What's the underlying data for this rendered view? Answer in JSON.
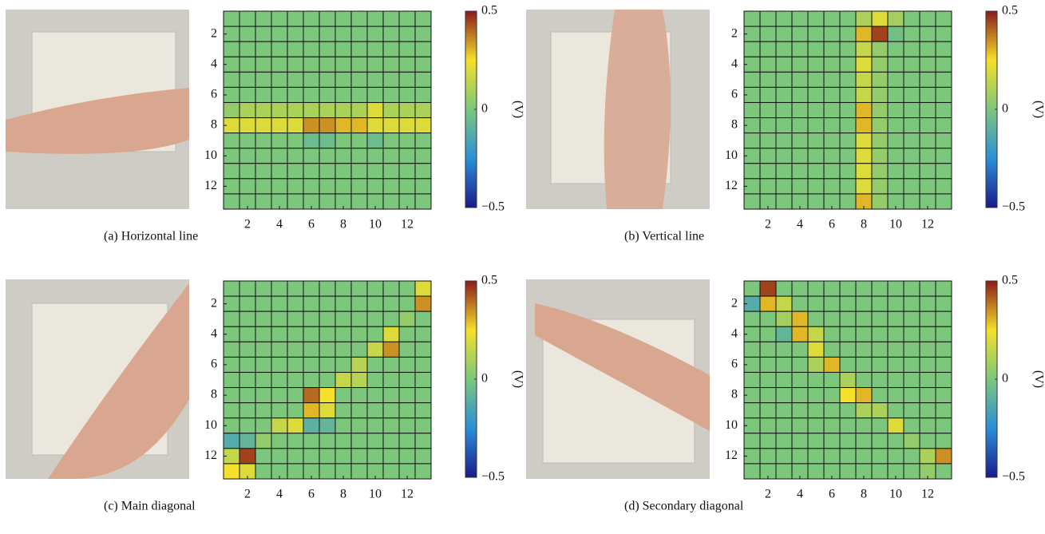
{
  "chart_data": [
    {
      "type": "heatmap",
      "caption": "(a)  Horizontal line",
      "xlim": [
        0.5,
        13.5
      ],
      "ylim": [
        0.5,
        13.5
      ],
      "xticks": [
        2,
        4,
        6,
        8,
        10,
        12
      ],
      "yticks": [
        2,
        4,
        6,
        8,
        10,
        12
      ],
      "zlim": [
        -0.5,
        0.5
      ],
      "colorbar_ticks": [
        0.5,
        0,
        {
          "value": -0.5,
          "label": "−0.5"
        }
      ],
      "colorbar_label": "(V)",
      "z": [
        [
          0,
          0,
          0,
          0,
          0,
          0,
          0,
          0,
          0,
          0,
          0,
          0,
          0
        ],
        [
          0,
          0,
          0,
          0,
          0,
          0,
          0,
          0,
          0,
          0,
          0,
          0,
          0
        ],
        [
          0,
          0,
          0,
          0,
          0,
          0,
          0,
          0,
          0,
          0,
          0,
          0,
          0
        ],
        [
          0,
          0,
          0,
          0,
          0,
          0,
          0,
          0,
          0,
          0,
          0,
          0,
          0
        ],
        [
          0,
          0,
          0,
          0,
          0,
          0,
          0,
          0,
          0,
          0,
          0,
          0,
          0
        ],
        [
          0,
          0,
          0,
          0,
          0,
          0,
          0,
          0,
          0,
          0,
          0,
          0,
          0
        ],
        [
          0.05,
          0.1,
          0.1,
          0.1,
          0.1,
          0.1,
          0.1,
          0.1,
          0.1,
          0.2,
          0.1,
          0.1,
          0.1
        ],
        [
          0.2,
          0.2,
          0.2,
          0.2,
          0.2,
          0.35,
          0.35,
          0.3,
          0.3,
          0.2,
          0.2,
          0.2,
          0.2
        ],
        [
          0,
          0,
          0,
          0,
          0,
          -0.05,
          -0.05,
          0,
          0,
          -0.05,
          0,
          0,
          0
        ],
        [
          0,
          0,
          0,
          0,
          0,
          0,
          0,
          0,
          0,
          0,
          0,
          0,
          0
        ],
        [
          0,
          0,
          0,
          0,
          0,
          0,
          0,
          0,
          0,
          0,
          0,
          0,
          0
        ],
        [
          0,
          0,
          0,
          0,
          0,
          0,
          0,
          0,
          0,
          0,
          0,
          0,
          0
        ],
        [
          0,
          0,
          0,
          0,
          0,
          0,
          0,
          0,
          0,
          0,
          0,
          0,
          0
        ]
      ]
    },
    {
      "type": "heatmap",
      "caption": "(b)  Vertical line",
      "xlim": [
        0.5,
        13.5
      ],
      "ylim": [
        0.5,
        13.5
      ],
      "xticks": [
        2,
        4,
        6,
        8,
        10,
        12
      ],
      "yticks": [
        2,
        4,
        6,
        8,
        10,
        12
      ],
      "zlim": [
        -0.5,
        0.5
      ],
      "colorbar_ticks": [
        0.5,
        0,
        {
          "value": -0.5,
          "label": "−0.5"
        }
      ],
      "colorbar_label": "(V)",
      "z": [
        [
          0,
          0,
          0,
          0,
          0,
          0,
          0,
          0.1,
          0.2,
          0.08,
          0,
          0,
          0
        ],
        [
          0,
          0,
          0,
          0,
          0,
          0,
          0,
          0.3,
          0.45,
          -0.03,
          0,
          0,
          0
        ],
        [
          0,
          0,
          0,
          0,
          0,
          0,
          0,
          0.15,
          0.05,
          0,
          0,
          0,
          0
        ],
        [
          0,
          0,
          0,
          0,
          0,
          0,
          0,
          0.2,
          0.05,
          0,
          0,
          0,
          0
        ],
        [
          0,
          0,
          0,
          0,
          0,
          0,
          0,
          0.15,
          0.05,
          0,
          0,
          0,
          0
        ],
        [
          0,
          0,
          0,
          0,
          0,
          0,
          0,
          0.15,
          0.05,
          0,
          0,
          0,
          0
        ],
        [
          0,
          0,
          0,
          0,
          0,
          0,
          0,
          0.3,
          0.05,
          0,
          0,
          0,
          0
        ],
        [
          0,
          0,
          0,
          0,
          0,
          0,
          0,
          0.3,
          0.05,
          0,
          0,
          0,
          0
        ],
        [
          0,
          0,
          0,
          0,
          0,
          0,
          0,
          0.2,
          0.05,
          0,
          0,
          0,
          0
        ],
        [
          0,
          0,
          0,
          0,
          0,
          0,
          0,
          0.2,
          0.05,
          0,
          0,
          0,
          0
        ],
        [
          0,
          0,
          0,
          0,
          0,
          0,
          0,
          0.2,
          0.05,
          0,
          0,
          0,
          0
        ],
        [
          0,
          0,
          0,
          0,
          0,
          0,
          0,
          0.2,
          0.05,
          0,
          0,
          0,
          0
        ],
        [
          0,
          0,
          0,
          0,
          0,
          0,
          0,
          0.3,
          0.05,
          0,
          0,
          0,
          0
        ]
      ]
    },
    {
      "type": "heatmap",
      "caption": "(c)  Main diagonal",
      "xlim": [
        0.5,
        13.5
      ],
      "ylim": [
        0.5,
        13.5
      ],
      "xticks": [
        2,
        4,
        6,
        8,
        10,
        12
      ],
      "yticks": [
        2,
        4,
        6,
        8,
        10,
        12
      ],
      "zlim": [
        -0.5,
        0.5
      ],
      "colorbar_ticks": [
        0.5,
        0,
        {
          "value": -0.5,
          "label": "−0.5"
        }
      ],
      "colorbar_label": "(V)",
      "z": [
        [
          0,
          0,
          0,
          0,
          0,
          0,
          0,
          0,
          0,
          0,
          0,
          0,
          0.2
        ],
        [
          0,
          0,
          0,
          0,
          0,
          0,
          0,
          0,
          0,
          0,
          0,
          0,
          0.35
        ],
        [
          0,
          0,
          0,
          0,
          0,
          0,
          0,
          0,
          0,
          0,
          0,
          0.05,
          0
        ],
        [
          0,
          0,
          0,
          0,
          0,
          0,
          0,
          0,
          0,
          0,
          0.2,
          0,
          0
        ],
        [
          0,
          0,
          0,
          0,
          0,
          0,
          0,
          0,
          0,
          0.15,
          0.35,
          0,
          0
        ],
        [
          0,
          0,
          0,
          0,
          0,
          0,
          0,
          0,
          0.12,
          0,
          0,
          0,
          0
        ],
        [
          0,
          0,
          0,
          0,
          0,
          0,
          0,
          0.15,
          0.12,
          0,
          0,
          0,
          0
        ],
        [
          0,
          0,
          0,
          0,
          0,
          0.4,
          0.25,
          0,
          0,
          0,
          0,
          0,
          0
        ],
        [
          0,
          0,
          0,
          0,
          0,
          0.3,
          0.2,
          0,
          0,
          0,
          0,
          0,
          0
        ],
        [
          0,
          0,
          0,
          0.15,
          0.2,
          -0.1,
          -0.08,
          0,
          0,
          0,
          0,
          0,
          0
        ],
        [
          -0.12,
          -0.08,
          0.05,
          0,
          0,
          0,
          0,
          0,
          0,
          0,
          0,
          0,
          0
        ],
        [
          0.15,
          0.45,
          0,
          0,
          0,
          0,
          0,
          0,
          0,
          0,
          0,
          0,
          0
        ],
        [
          0.25,
          0.2,
          0,
          0,
          0,
          0,
          0,
          0,
          0,
          0,
          0,
          0,
          0
        ]
      ]
    },
    {
      "type": "heatmap",
      "caption": "(d)  Secondary diagonal",
      "xlim": [
        0.5,
        13.5
      ],
      "ylim": [
        0.5,
        13.5
      ],
      "xticks": [
        2,
        4,
        6,
        8,
        10,
        12
      ],
      "yticks": [
        2,
        4,
        6,
        8,
        10,
        12
      ],
      "zlim": [
        -0.5,
        0.5
      ],
      "colorbar_ticks": [
        0.5,
        0,
        {
          "value": -0.5,
          "label": "−0.5"
        }
      ],
      "colorbar_label": "(V)",
      "z": [
        [
          0,
          0.45,
          0,
          0,
          0,
          0,
          0,
          0,
          0,
          0,
          0,
          0,
          0
        ],
        [
          -0.12,
          0.3,
          0.15,
          0,
          0,
          0,
          0,
          0,
          0,
          0,
          0,
          0,
          0
        ],
        [
          0,
          0,
          0.08,
          0.3,
          0,
          0,
          0,
          0,
          0,
          0,
          0,
          0,
          0
        ],
        [
          0,
          0,
          -0.08,
          0.3,
          0.15,
          0,
          0,
          0,
          0,
          0,
          0,
          0,
          0
        ],
        [
          0,
          0,
          0,
          0,
          0.2,
          0,
          0,
          0,
          0,
          0,
          0,
          0,
          0
        ],
        [
          0,
          0,
          0,
          0,
          0.1,
          0.3,
          0,
          0,
          0,
          0,
          0,
          0,
          0
        ],
        [
          0,
          0,
          0,
          0,
          0,
          0,
          0.1,
          0,
          0,
          0,
          0,
          0,
          0
        ],
        [
          0,
          0,
          0,
          0,
          0,
          0,
          0.25,
          0.3,
          0,
          0,
          0,
          0,
          0
        ],
        [
          0,
          0,
          0,
          0,
          0,
          0,
          0,
          0.1,
          0.1,
          0,
          0,
          0,
          0
        ],
        [
          0,
          0,
          0,
          0,
          0,
          0,
          0,
          0,
          0,
          0.2,
          0,
          0,
          0
        ],
        [
          0,
          0,
          0,
          0,
          0,
          0,
          0,
          0,
          0,
          0,
          0.05,
          0,
          0
        ],
        [
          0,
          0,
          0,
          0,
          0,
          0,
          0,
          0,
          0,
          0,
          0,
          0.1,
          0.35
        ],
        [
          0,
          0,
          0,
          0,
          0,
          0,
          0,
          0,
          0,
          0,
          0,
          0.05,
          0
        ]
      ]
    }
  ]
}
